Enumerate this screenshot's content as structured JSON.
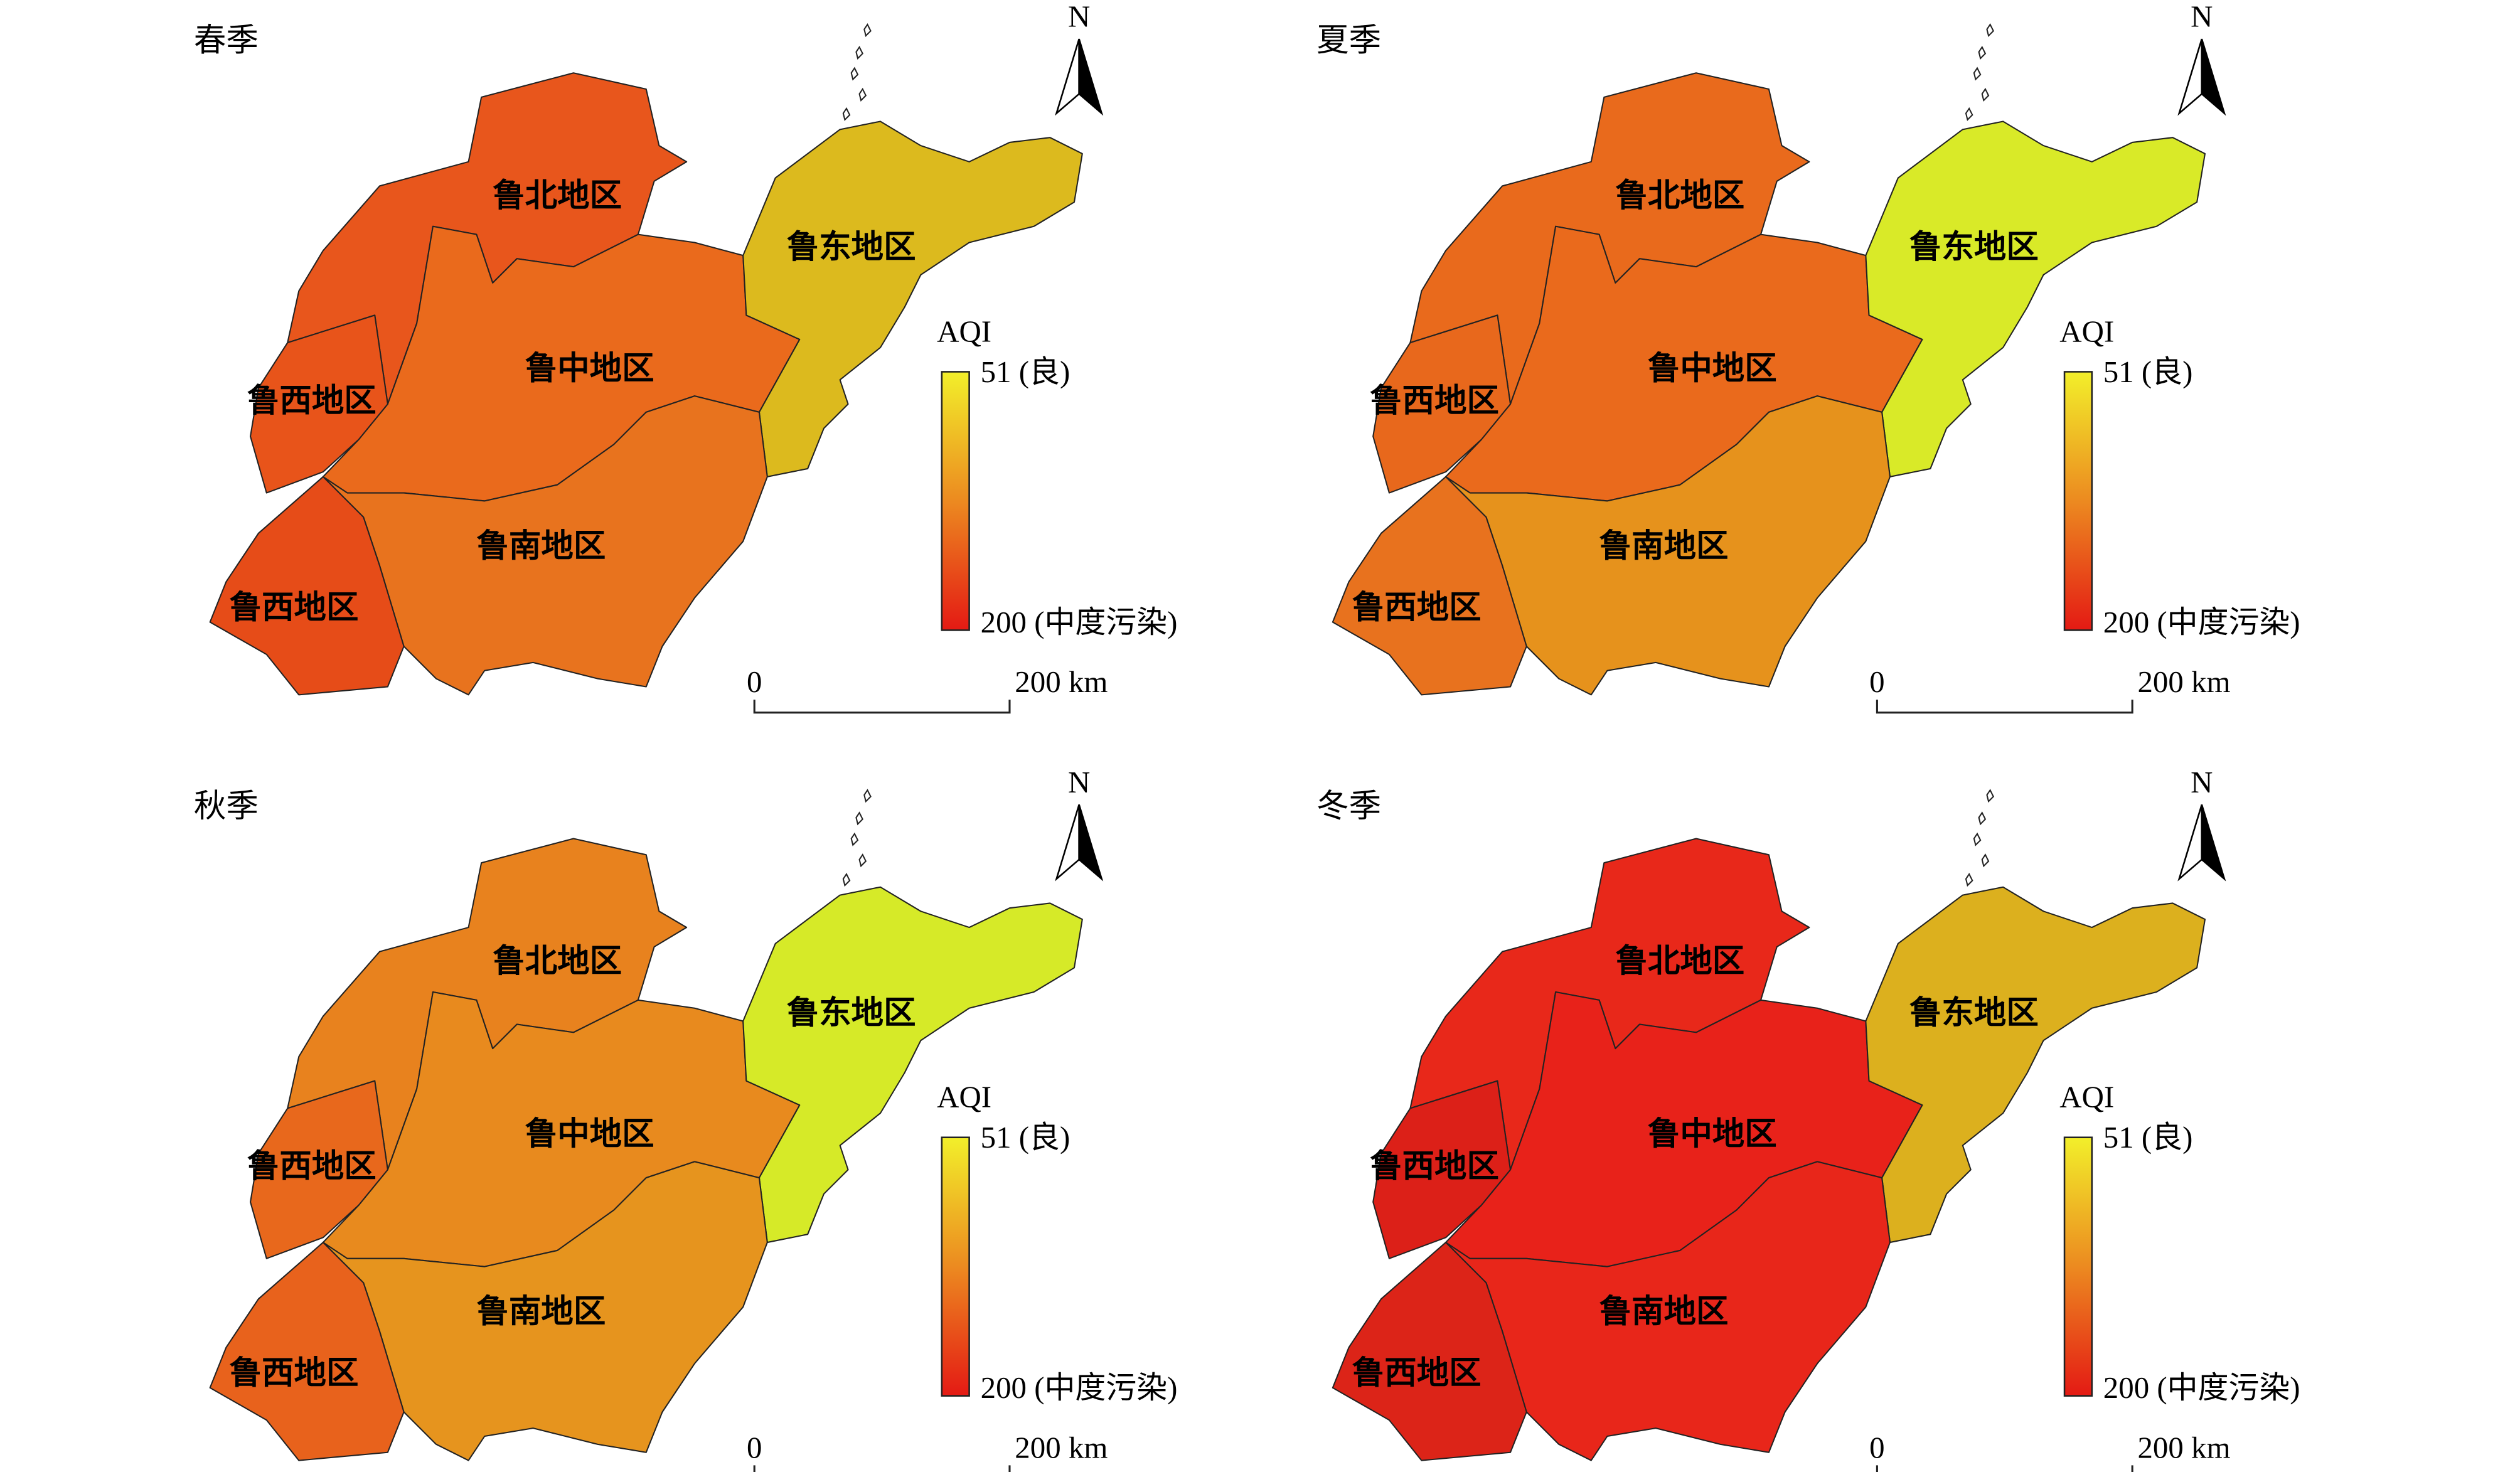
{
  "panels": [
    {
      "title": "春季",
      "regions": [
        {
          "label": "鲁北地区",
          "color": "#e8561c"
        },
        {
          "label": "鲁中地区",
          "color": "#ea6a1c"
        },
        {
          "label": "鲁东地区",
          "color": "#dcba1e"
        },
        {
          "label": "鲁西地区",
          "color": "#e8541a"
        },
        {
          "label": "鲁南地区",
          "color": "#e8731e"
        },
        {
          "label": "鲁西地区",
          "color": "#e64c18"
        }
      ],
      "legend": {
        "title": "AQI",
        "top_label": "51 (良)",
        "bottom_label": "200 (中度污染)"
      },
      "scale": {
        "start": "0",
        "end": "200 km"
      },
      "north": "N"
    },
    {
      "title": "夏季",
      "regions": [
        {
          "label": "鲁北地区",
          "color": "#e96a1c"
        },
        {
          "label": "鲁中地区",
          "color": "#ea6a1c"
        },
        {
          "label": "鲁东地区",
          "color": "#d9ea28"
        },
        {
          "label": "鲁西地区",
          "color": "#e8681c"
        },
        {
          "label": "鲁南地区",
          "color": "#e6921c"
        },
        {
          "label": "鲁西地区",
          "color": "#e8721e"
        }
      ],
      "legend": {
        "title": "AQI",
        "top_label": "51 (良)",
        "bottom_label": "200 (中度污染)"
      },
      "scale": {
        "start": "0",
        "end": "200 km"
      },
      "north": "N"
    },
    {
      "title": "秋季",
      "regions": [
        {
          "label": "鲁北地区",
          "color": "#e8821e"
        },
        {
          "label": "鲁中地区",
          "color": "#e88a1e"
        },
        {
          "label": "鲁东地区",
          "color": "#d6ea28"
        },
        {
          "label": "鲁西地区",
          "color": "#e8681c"
        },
        {
          "label": "鲁南地区",
          "color": "#e6941e"
        },
        {
          "label": "鲁西地区",
          "color": "#e8621c"
        }
      ],
      "legend": {
        "title": "AQI",
        "top_label": "51 (良)",
        "bottom_label": "200 (中度污染)"
      },
      "scale": {
        "start": "0",
        "end": "200 km"
      },
      "north": "N"
    },
    {
      "title": "冬季",
      "regions": [
        {
          "label": "鲁北地区",
          "color": "#e8281a"
        },
        {
          "label": "鲁中地区",
          "color": "#e8221a"
        },
        {
          "label": "鲁东地区",
          "color": "#dcb01e"
        },
        {
          "label": "鲁西地区",
          "color": "#dc2018"
        },
        {
          "label": "鲁南地区",
          "color": "#e8261a"
        },
        {
          "label": "鲁西地区",
          "color": "#dc2418"
        }
      ],
      "legend": {
        "title": "AQI",
        "top_label": "51 (良)",
        "bottom_label": "200 (中度污染)"
      },
      "scale": {
        "start": "0",
        "end": "200 km"
      },
      "north": "N"
    }
  ]
}
